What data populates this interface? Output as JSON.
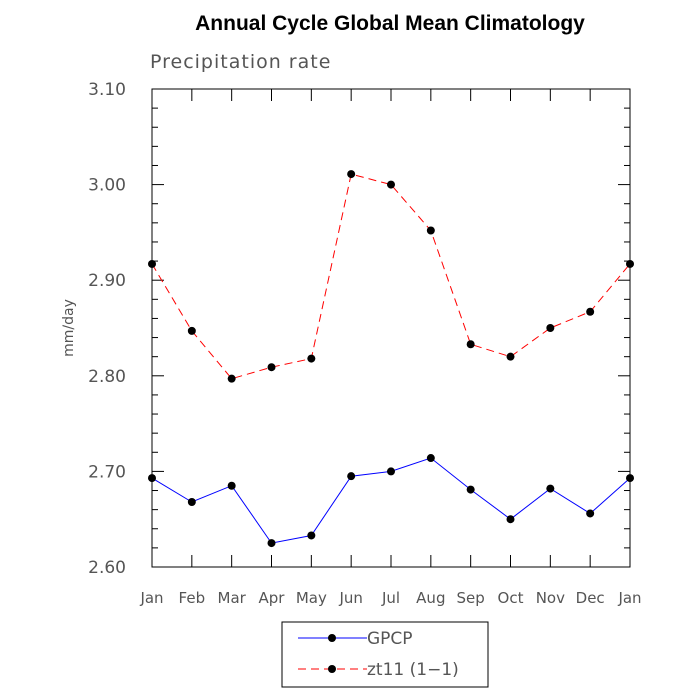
{
  "chart_data": {
    "type": "line",
    "title": "Annual Cycle Global Mean Climatology",
    "subtitle": "Precipitation rate",
    "ylabel": "mm/day",
    "xlabel": "",
    "categories": [
      "Jan",
      "Feb",
      "Mar",
      "Apr",
      "May",
      "Jun",
      "Jul",
      "Aug",
      "Sep",
      "Oct",
      "Nov",
      "Dec",
      "Jan"
    ],
    "ylim": [
      2.6,
      3.1
    ],
    "yticks": [
      "2.60",
      "2.70",
      "2.80",
      "2.90",
      "3.00",
      "3.10"
    ],
    "grid": false,
    "legend_position": "bottom",
    "series": [
      {
        "name": "GPCP",
        "values": [
          2.693,
          2.668,
          2.685,
          2.625,
          2.633,
          2.695,
          2.7,
          2.714,
          2.681,
          2.65,
          2.682,
          2.656,
          2.693
        ],
        "color": "#0000ff",
        "line_style": "solid",
        "marker": "filled-circle"
      },
      {
        "name": "zt11 (1−1)",
        "values": [
          2.917,
          2.847,
          2.797,
          2.809,
          2.818,
          3.011,
          3.0,
          2.952,
          2.833,
          2.82,
          2.85,
          2.867,
          2.917
        ],
        "color": "#ff0000",
        "line_style": "dashed",
        "marker": "filled-circle"
      }
    ]
  }
}
